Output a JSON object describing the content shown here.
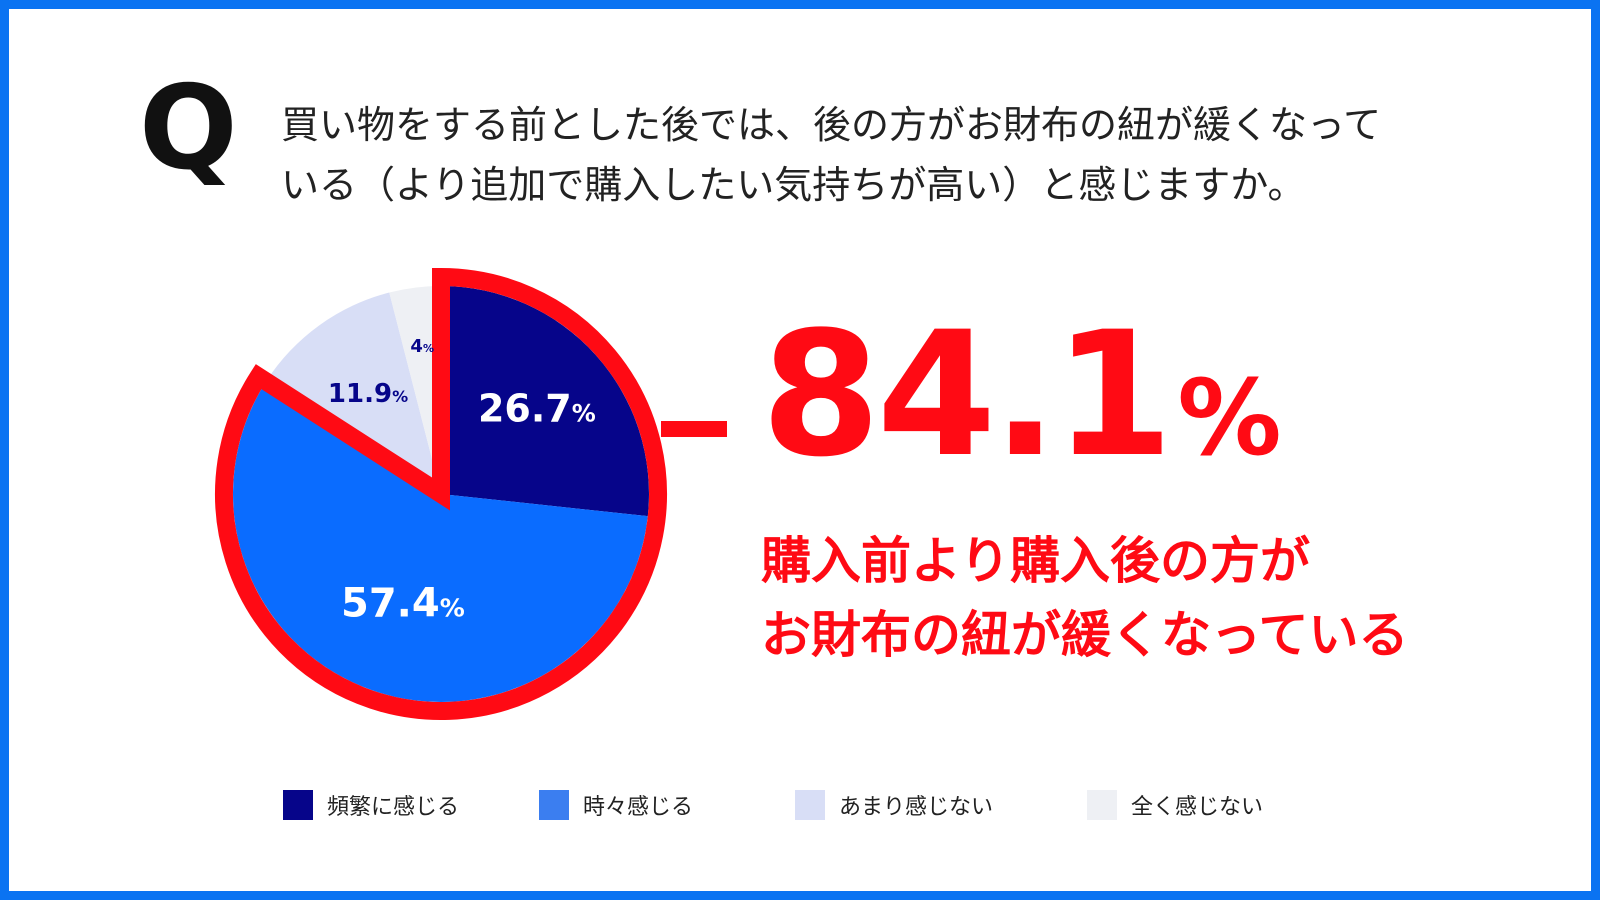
{
  "question": {
    "mark": "Q",
    "line1": "買い物をする前とした後では、後の方がお財布の紐が緩くなって",
    "line2": "いる（より追加で購入したい気持ちが高い）と感じますか。"
  },
  "highlight": {
    "value": "84.1",
    "unit": "%",
    "line1": "購入前より購入後の方が",
    "line2": "お財布の紐が緩くなっている"
  },
  "colors": {
    "frame": "#0a73f2",
    "accent": "#ff0a14",
    "frequently": "#06058a",
    "sometimes": "#0a6cff",
    "rarely": "#d8def6",
    "never": "#eef0f4"
  },
  "chart_data": {
    "type": "pie",
    "unit": "%",
    "slices": [
      {
        "label": "頻繁に感じる",
        "value": 26.7,
        "display": "26.7",
        "color": "#06058a",
        "text_color": "#ffffff",
        "highlighted": true
      },
      {
        "label": "時々感じる",
        "value": 57.4,
        "display": "57.4",
        "color": "#0a6cff",
        "text_color": "#ffffff",
        "highlighted": true
      },
      {
        "label": "あまり感じない",
        "value": 11.9,
        "display": "11.9",
        "color": "#d8def6",
        "text_color": "#06058a",
        "highlighted": false
      },
      {
        "label": "全く感じない",
        "value": 4.0,
        "display": "4",
        "color": "#eef0f4",
        "text_color": "#06058a",
        "highlighted": false
      }
    ],
    "start": "12 o'clock",
    "direction": "clockwise",
    "legend_position": "bottom"
  },
  "legend_colors": [
    "#06058a",
    "#3b7ef0",
    "#d8def6",
    "#eef0f4"
  ]
}
